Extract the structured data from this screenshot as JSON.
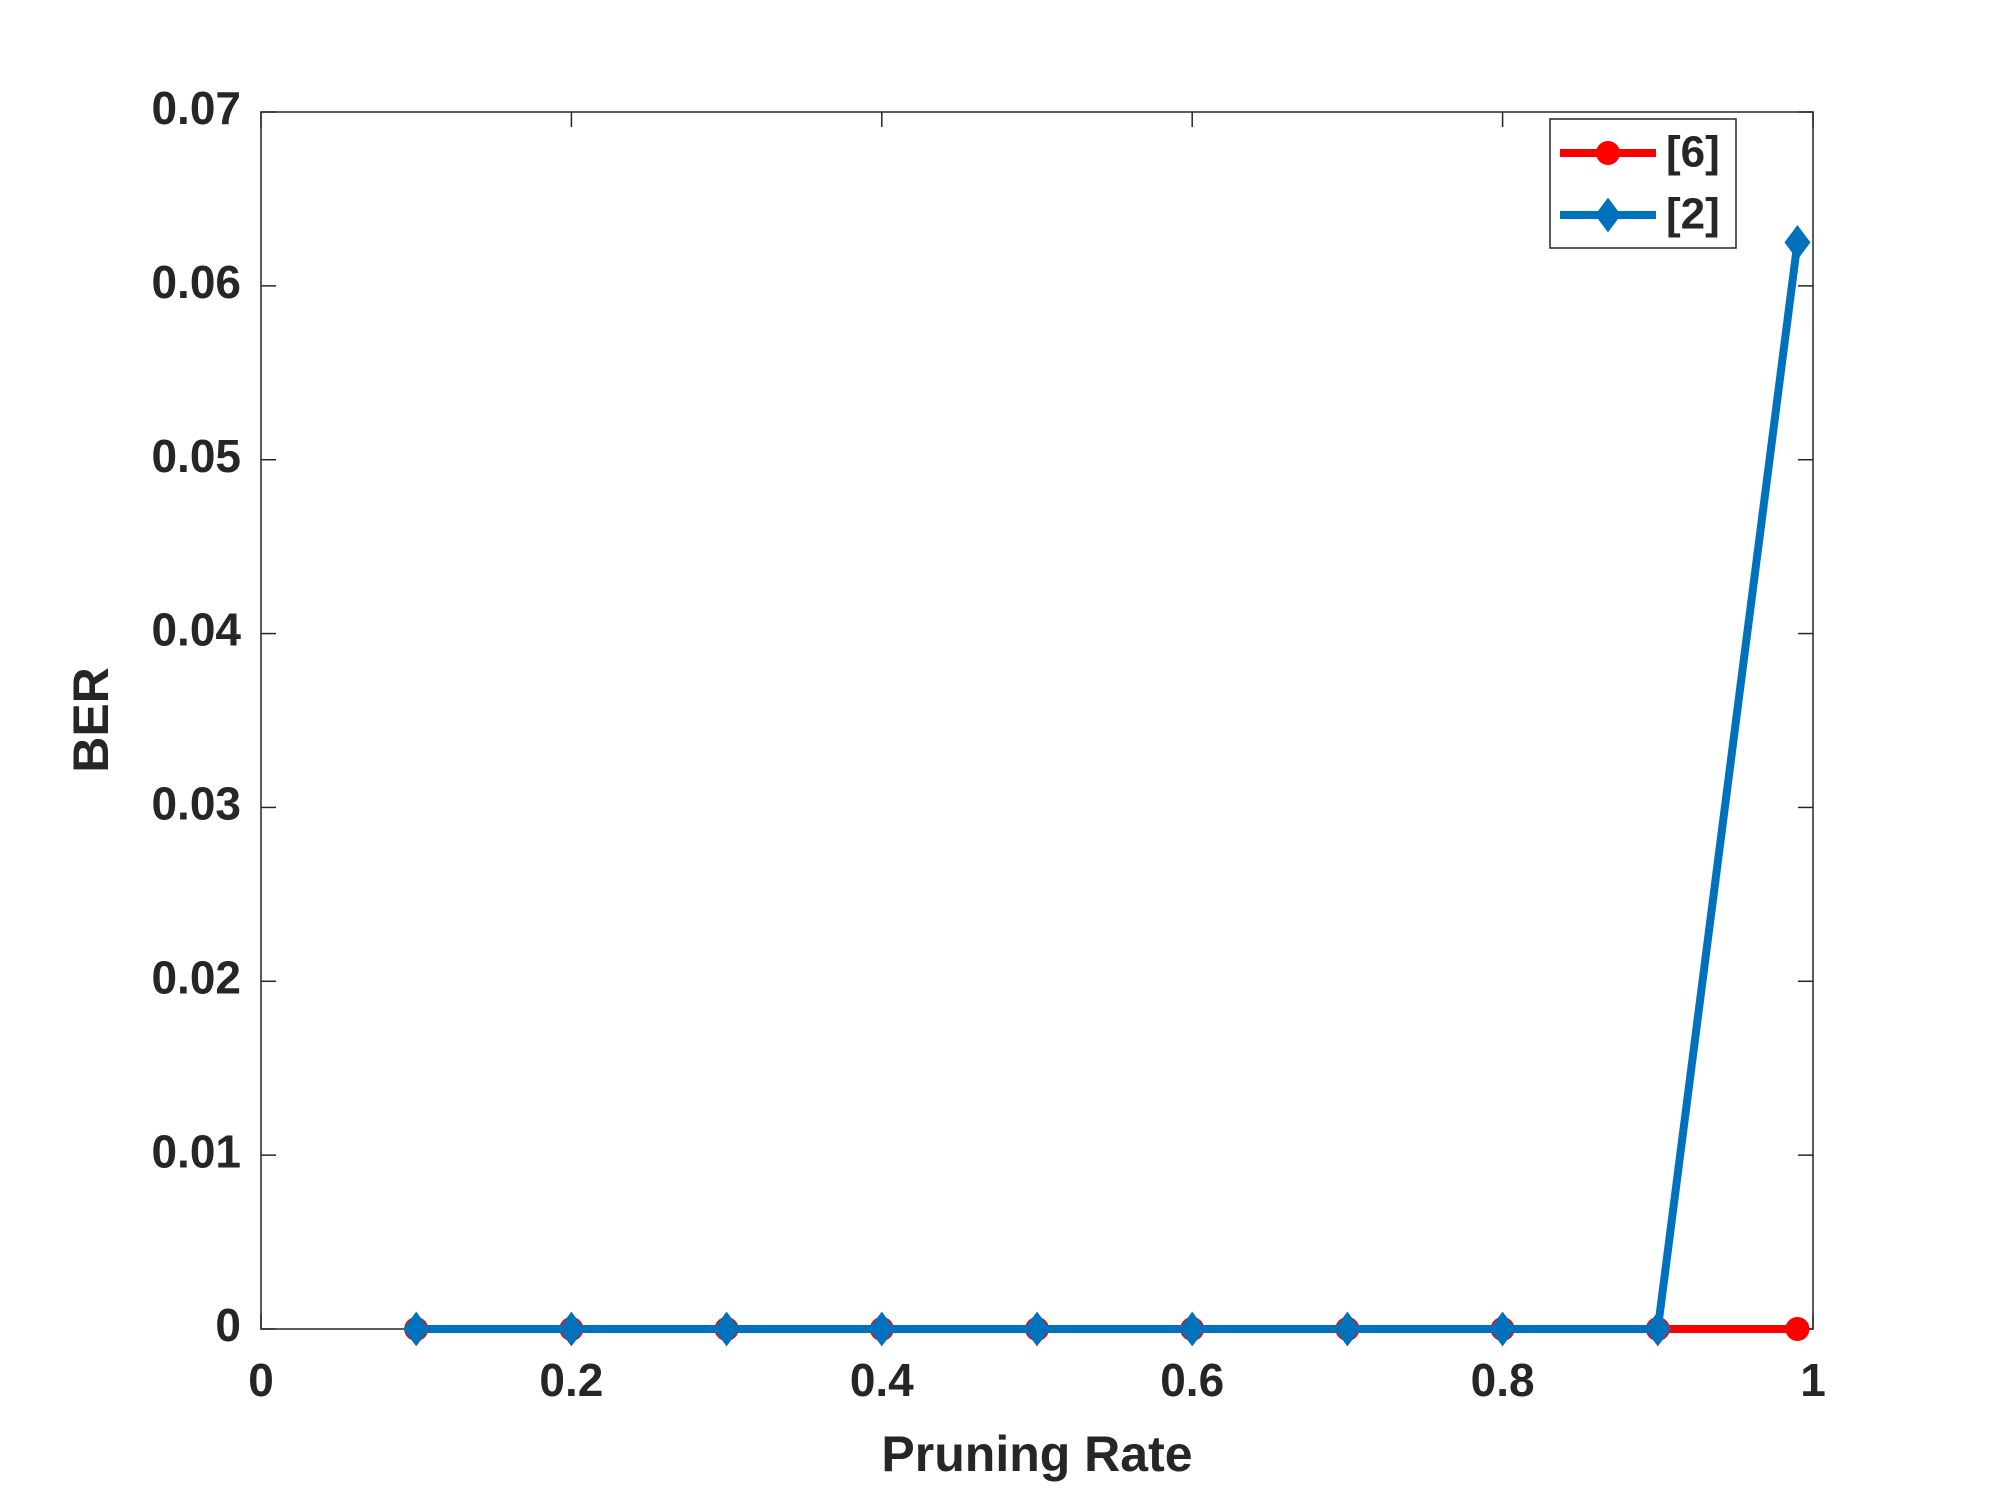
{
  "chart_data": {
    "type": "line",
    "xlabel": "Pruning Rate",
    "ylabel": "BER",
    "x": [
      0.1,
      0.2,
      0.3,
      0.4,
      0.5,
      0.6,
      0.7,
      0.8,
      0.9,
      0.99
    ],
    "series": [
      {
        "name": "[6]",
        "color": "#ff0000",
        "marker": "circle",
        "values": [
          0,
          0,
          0,
          0,
          0,
          0,
          0,
          0,
          0,
          0
        ]
      },
      {
        "name": "[2]",
        "color": "#0072bd",
        "marker": "diamond",
        "values": [
          0,
          0,
          0,
          0,
          0,
          0,
          0,
          0,
          0,
          0.0625
        ]
      }
    ],
    "xlim": [
      0,
      1
    ],
    "xticks": [
      0,
      0.2,
      0.4,
      0.6,
      0.8,
      1
    ],
    "ylim": [
      0,
      0.07
    ],
    "yticks": [
      0,
      0.01,
      0.02,
      0.03,
      0.04,
      0.05,
      0.06,
      0.07
    ],
    "grid": false,
    "legend": "upper right"
  }
}
